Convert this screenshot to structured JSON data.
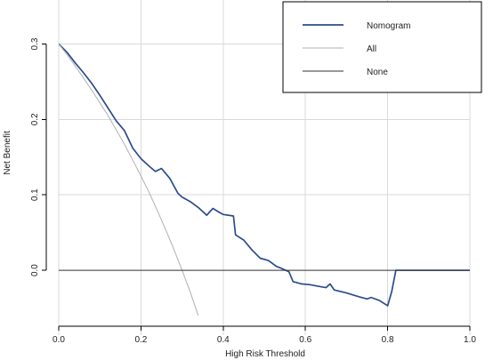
{
  "chart_data": {
    "type": "line",
    "xlabel": "High Risk Threshold",
    "ylabel": "Net Benefit",
    "xlim": [
      0,
      1.0
    ],
    "ylim": [
      -0.06,
      0.31
    ],
    "xticks": [
      0.0,
      0.2,
      0.4,
      0.6,
      0.8,
      1.0
    ],
    "xtick_labels": [
      "0.0",
      "0.2",
      "0.4",
      "0.6",
      "0.8",
      "1.0"
    ],
    "yticks": [
      0.0,
      0.1,
      0.2,
      0.3
    ],
    "ytick_labels": [
      "0.0",
      "0.1",
      "0.2",
      "0.3"
    ],
    "grid": true,
    "legend_position": "top-right",
    "series": [
      {
        "name": "Nomogram",
        "color": "#2c4c8c",
        "x": [
          0.0,
          0.02,
          0.04,
          0.06,
          0.08,
          0.1,
          0.12,
          0.14,
          0.16,
          0.18,
          0.2,
          0.22,
          0.235,
          0.25,
          0.27,
          0.29,
          0.3,
          0.32,
          0.34,
          0.36,
          0.375,
          0.39,
          0.4,
          0.425,
          0.43,
          0.45,
          0.47,
          0.49,
          0.51,
          0.53,
          0.54,
          0.56,
          0.57,
          0.59,
          0.61,
          0.63,
          0.65,
          0.66,
          0.67,
          0.7,
          0.73,
          0.75,
          0.76,
          0.78,
          0.8,
          0.81,
          0.82,
          0.9,
          1.0
        ],
        "y": [
          0.3,
          0.289,
          0.275,
          0.262,
          0.248,
          0.232,
          0.215,
          0.198,
          0.185,
          0.162,
          0.148,
          0.138,
          0.131,
          0.135,
          0.122,
          0.102,
          0.097,
          0.091,
          0.083,
          0.073,
          0.082,
          0.077,
          0.074,
          0.072,
          0.047,
          0.04,
          0.027,
          0.016,
          0.013,
          0.005,
          0.003,
          -0.002,
          -0.015,
          -0.018,
          -0.019,
          -0.021,
          -0.023,
          -0.018,
          -0.026,
          -0.03,
          -0.035,
          -0.038,
          -0.036,
          -0.04,
          -0.047,
          -0.028,
          0.0,
          0.0,
          0.0
        ]
      },
      {
        "name": "All",
        "color": "#b0b0b0",
        "x": [
          0.0,
          0.02,
          0.04,
          0.06,
          0.08,
          0.1,
          0.12,
          0.14,
          0.16,
          0.18,
          0.2,
          0.22,
          0.24,
          0.26,
          0.28,
          0.3,
          0.32,
          0.34,
          0.35
        ],
        "y": [
          0.3,
          0.286,
          0.271,
          0.255,
          0.239,
          0.222,
          0.205,
          0.186,
          0.167,
          0.146,
          0.125,
          0.103,
          0.079,
          0.054,
          0.028,
          0.0,
          -0.029,
          -0.061,
          -0.077
        ]
      },
      {
        "name": "None",
        "color": "#333333",
        "x": [
          0.0,
          1.0
        ],
        "y": [
          0.0,
          0.0
        ]
      }
    ]
  }
}
